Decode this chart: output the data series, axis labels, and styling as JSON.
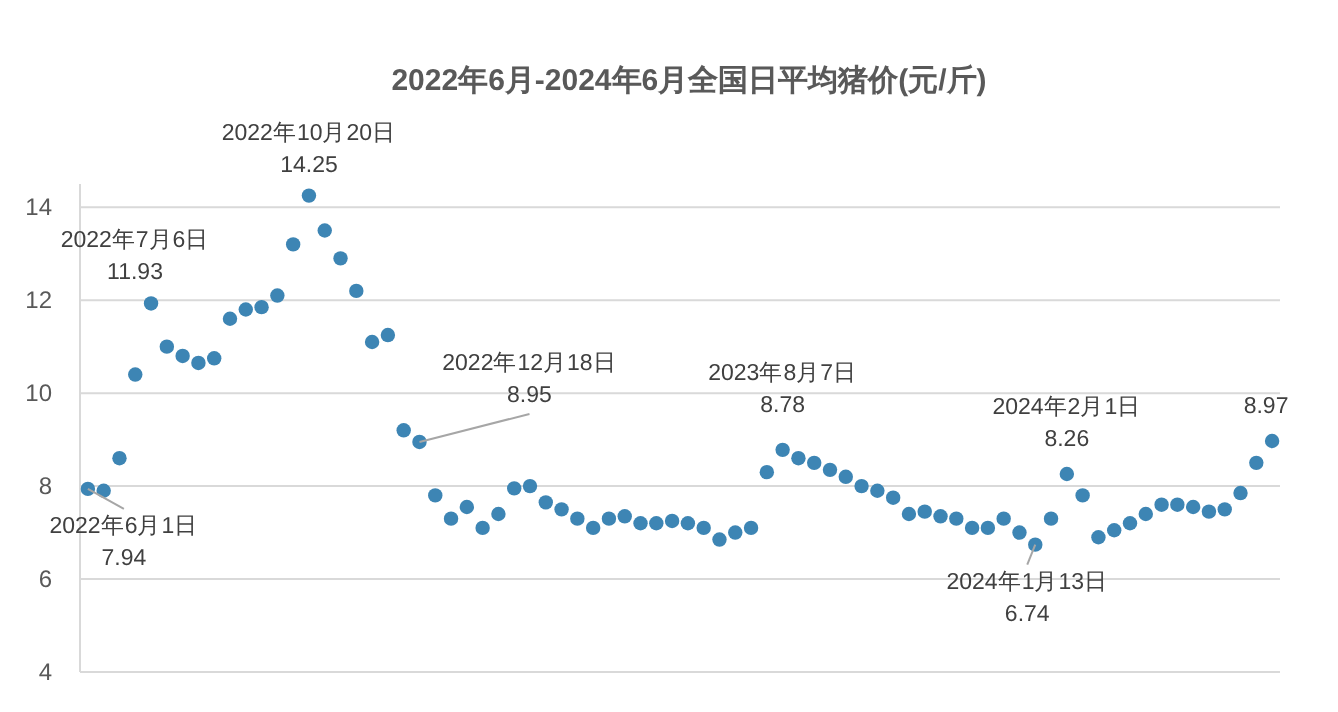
{
  "chart_data": {
    "type": "scatter",
    "title": "2022年6月-2024年6月全国日平均猪价(元/斤)",
    "categories": [
      null,
      null,
      null,
      null,
      null,
      null,
      null,
      null,
      null,
      null,
      null,
      null,
      null,
      null,
      null,
      null,
      null,
      null,
      null,
      null,
      null,
      null,
      null,
      null,
      null,
      null,
      null,
      null,
      null,
      null,
      null,
      null,
      null,
      null,
      null,
      null,
      null,
      null,
      null,
      null,
      null,
      null,
      null,
      null,
      null,
      null,
      null,
      null,
      null,
      null,
      null,
      null,
      null,
      null,
      null,
      null,
      null,
      null,
      null,
      null,
      null,
      null,
      null,
      null,
      null,
      null,
      null,
      null,
      null,
      null,
      null,
      null,
      null,
      null,
      null,
      null
    ],
    "values": [
      7.94,
      7.9,
      8.6,
      10.4,
      11.93,
      11.0,
      10.8,
      10.65,
      10.75,
      11.6,
      11.8,
      11.85,
      12.1,
      13.2,
      14.25,
      13.5,
      12.9,
      12.2,
      11.1,
      11.25,
      9.2,
      8.95,
      7.8,
      7.3,
      7.55,
      7.1,
      7.4,
      7.95,
      8.0,
      7.65,
      7.5,
      7.3,
      7.1,
      7.3,
      7.35,
      7.2,
      7.2,
      7.25,
      7.2,
      7.1,
      6.85,
      7.0,
      7.1,
      8.3,
      8.78,
      8.6,
      8.5,
      8.35,
      8.2,
      8.0,
      7.9,
      7.75,
      7.4,
      7.45,
      7.35,
      7.3,
      7.1,
      7.1,
      7.3,
      7.0,
      6.74,
      7.3,
      8.26,
      7.8,
      6.9,
      7.05,
      7.2,
      7.4,
      7.6,
      7.6,
      7.55,
      7.45,
      7.5,
      7.85,
      8.5,
      8.97
    ],
    "color": "#3d85b4",
    "marker": "circle",
    "ylim": [
      4,
      14.5
    ],
    "yticks": [
      4,
      6,
      8,
      10,
      12,
      14
    ],
    "grid": "y",
    "tick_labels": "y",
    "annotations": [
      "2022年6月1日\n7.94",
      "2022年7月6日\n11.93",
      "2022年10月20日\n14.25",
      "2022年12月18日\n8.95",
      "2023年8月7日\n8.78",
      "2024年1月13日\n6.74",
      "2024年2月1日\n8.26",
      "8.97"
    ]
  }
}
